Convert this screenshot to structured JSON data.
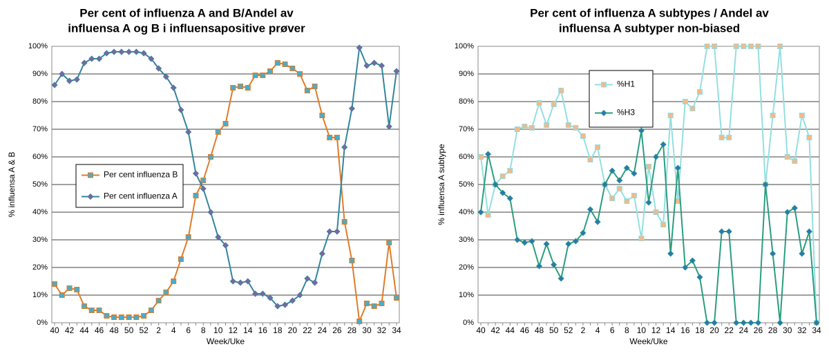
{
  "chart_data": [
    {
      "type": "line",
      "title": [
        "Per cent of influenza A and B/Andel av",
        "influensa A og B i influensapositive prøver"
      ],
      "xlabel": "Week/Uke",
      "ylabel": "% influensa A & B",
      "categories": [
        "40",
        null,
        "42",
        null,
        "44",
        null,
        "46",
        null,
        "48",
        null,
        "50",
        null,
        "52",
        null,
        "2",
        null,
        "4",
        null,
        "6",
        null,
        "8",
        null,
        "10",
        null,
        "12",
        null,
        "14",
        null,
        "16",
        null,
        "18",
        null,
        "20",
        null,
        "22",
        null,
        "24",
        null,
        "26",
        null,
        "28",
        null,
        "30",
        null,
        "32",
        null,
        "34"
      ],
      "ylim": [
        0,
        100
      ],
      "yticks": [
        {
          "value": 0,
          "label": "0%"
        },
        {
          "value": 10,
          "label": "10%"
        },
        {
          "value": 20,
          "label": "20%"
        },
        {
          "value": 30,
          "label": "30%"
        },
        {
          "value": 40,
          "label": "40%"
        },
        {
          "value": 50,
          "label": "50%"
        },
        {
          "value": 60,
          "label": "60%"
        },
        {
          "value": 70,
          "label": "70%"
        },
        {
          "value": 80,
          "label": "80%"
        },
        {
          "value": 90,
          "label": "90%"
        },
        {
          "value": 100,
          "label": "100%"
        }
      ],
      "grid": true,
      "legend": "center-left",
      "series": [
        {
          "name": "Per cent influenza B",
          "color": "#e07b28",
          "marker": "square",
          "marker_color": "#4bacc6",
          "values": [
            14,
            10,
            12.5,
            12,
            6,
            4.5,
            4.5,
            2.5,
            2,
            2,
            2,
            2,
            2.5,
            4.5,
            8,
            11,
            15,
            23,
            31,
            46,
            51.5,
            60,
            69,
            72,
            85,
            85.5,
            85,
            89.5,
            89.5,
            91,
            94,
            93.5,
            92,
            90,
            84,
            85.5,
            75,
            67,
            67,
            36.5,
            22.5,
            0.5,
            7,
            6,
            7,
            29,
            9
          ]
        },
        {
          "name": "Per cent influenza A",
          "color": "#31859c",
          "marker": "diamond",
          "marker_color": "#8064a2",
          "values": [
            86,
            90,
            87.5,
            88,
            94,
            95.5,
            95.5,
            97.5,
            98,
            98,
            98,
            98,
            97.5,
            95.5,
            92,
            89,
            85,
            77,
            69,
            54,
            48.5,
            40,
            31,
            28,
            15,
            14.5,
            15,
            10.5,
            10.5,
            9,
            6,
            6.5,
            8,
            10,
            16,
            14.5,
            25,
            33,
            33,
            63.5,
            77.5,
            99.5,
            93,
            94,
            93,
            71,
            91
          ]
        }
      ]
    },
    {
      "type": "line",
      "title": [
        "Per cent of influenza A subtypes / Andel av",
        "influensa A subtyper non-biased"
      ],
      "xlabel": "Week/Uke",
      "ylabel": "% influensa A subtype",
      "categories": [
        "40",
        null,
        "42",
        null,
        "44",
        null,
        "46",
        null,
        "48",
        null,
        "50",
        null,
        "52",
        null,
        "2",
        null,
        "4",
        null,
        "6",
        null,
        "8",
        null,
        "10",
        null,
        "12",
        null,
        "14",
        null,
        "16",
        null,
        "18",
        null,
        "20",
        null,
        "22",
        null,
        "24",
        null,
        "26",
        null,
        "28",
        null,
        "30",
        null,
        "32",
        null,
        "34"
      ],
      "ylim": [
        0,
        100
      ],
      "yticks": [
        {
          "value": 0,
          "label": "0%"
        },
        {
          "value": 10,
          "label": "10%"
        },
        {
          "value": 20,
          "label": "20%"
        },
        {
          "value": 30,
          "label": "30%"
        },
        {
          "value": 40,
          "label": "40%"
        },
        {
          "value": 50,
          "label": "50%"
        },
        {
          "value": 60,
          "label": "60%"
        },
        {
          "value": 70,
          "label": "70%"
        },
        {
          "value": 80,
          "label": "80%"
        },
        {
          "value": 90,
          "label": "90%"
        },
        {
          "value": 100,
          "label": "100%"
        }
      ],
      "grid": true,
      "legend": "upper-center-left",
      "series": [
        {
          "name": "%H1",
          "color": "#93dfe0",
          "marker": "square",
          "marker_color": "#f2b98a",
          "values": [
            60,
            39,
            50,
            53,
            55,
            70,
            71,
            70.5,
            79.5,
            71.5,
            79,
            84,
            71.5,
            70.5,
            67.5,
            59,
            63.5,
            50,
            45,
            48.5,
            44,
            46,
            30.5,
            56.5,
            40,
            35.5,
            75,
            44,
            80,
            77.5,
            83.5,
            100,
            100,
            67,
            67,
            100,
            100,
            100,
            100,
            50,
            75,
            100,
            60,
            58.5,
            75,
            67,
            0
          ]
        },
        {
          "name": "%H3",
          "color": "#2a9d7f",
          "marker": "diamond",
          "marker_color": "#2e75b6",
          "values": [
            40,
            61,
            50,
            47,
            45,
            30,
            29,
            29.5,
            20.5,
            28.5,
            21,
            16,
            28.5,
            29.5,
            32.5,
            41,
            36.5,
            50,
            55,
            51.5,
            56,
            54,
            69.5,
            43.5,
            60,
            64.5,
            25,
            56,
            20,
            22.5,
            16.5,
            0,
            0,
            33,
            33,
            0,
            0,
            0,
            0,
            50,
            25,
            0,
            40,
            41.5,
            25,
            33,
            0
          ]
        }
      ]
    }
  ]
}
